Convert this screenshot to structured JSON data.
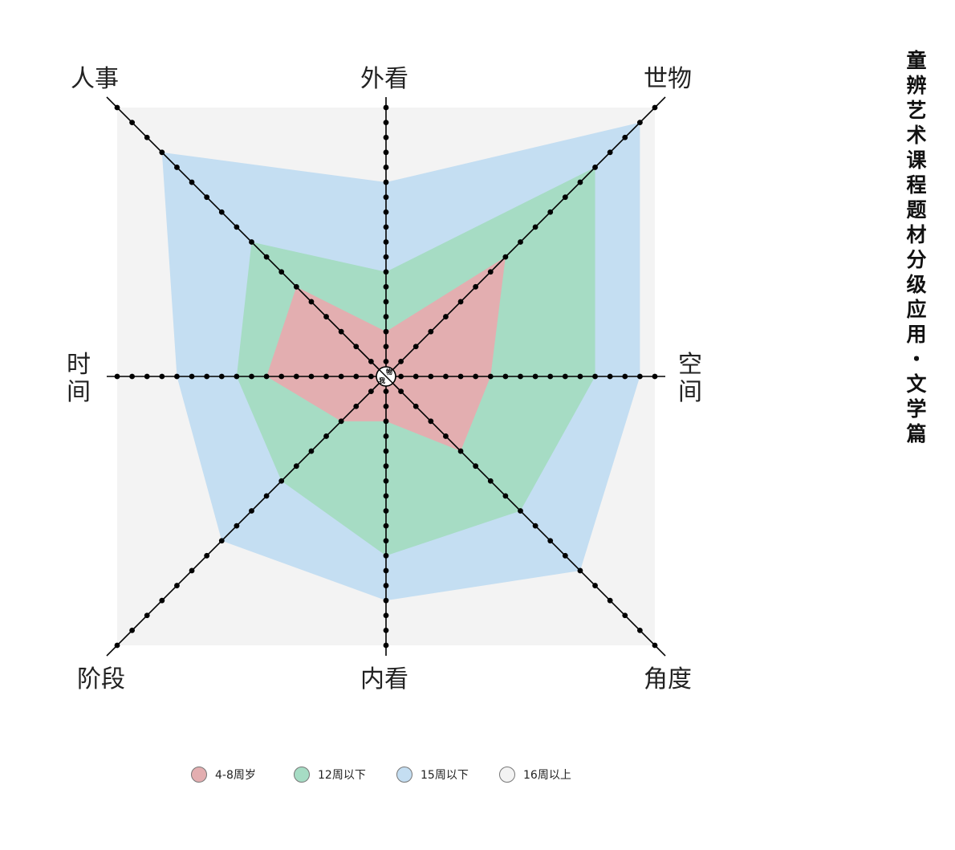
{
  "title": "童辨艺术课程题材分级应用・文学篇",
  "center": {
    "top": "物",
    "bottom": "我"
  },
  "chart_data": {
    "type": "radar",
    "axes": [
      "外看",
      "世物",
      "空间",
      "角度",
      "内看",
      "阶段",
      "时间",
      "人事"
    ],
    "max": 18,
    "series": [
      {
        "name": "4-8周岁",
        "color": "#e3aeb0",
        "values": [
          3,
          8,
          7,
          5,
          3,
          3,
          8,
          6
        ]
      },
      {
        "name": "12周以下",
        "color": "#a6dcc4",
        "values": [
          7,
          14,
          14,
          9,
          12,
          7,
          10,
          9
        ]
      },
      {
        "name": "15周以下",
        "color": "#c4def2",
        "values": [
          13,
          17,
          17,
          13,
          15,
          11,
          14,
          15
        ]
      },
      {
        "name": "16周以上",
        "color": "#f3f3f3",
        "values": [
          18,
          18,
          18,
          18,
          18,
          18,
          18,
          18
        ]
      }
    ]
  },
  "legend": [
    {
      "label": "4-8周岁",
      "color": "#e3aeb0"
    },
    {
      "label": "12周以下",
      "color": "#a6dcc4"
    },
    {
      "label": "15周以下",
      "color": "#c4def2"
    },
    {
      "label": "16周以上",
      "color": "#f3f3f3"
    }
  ]
}
